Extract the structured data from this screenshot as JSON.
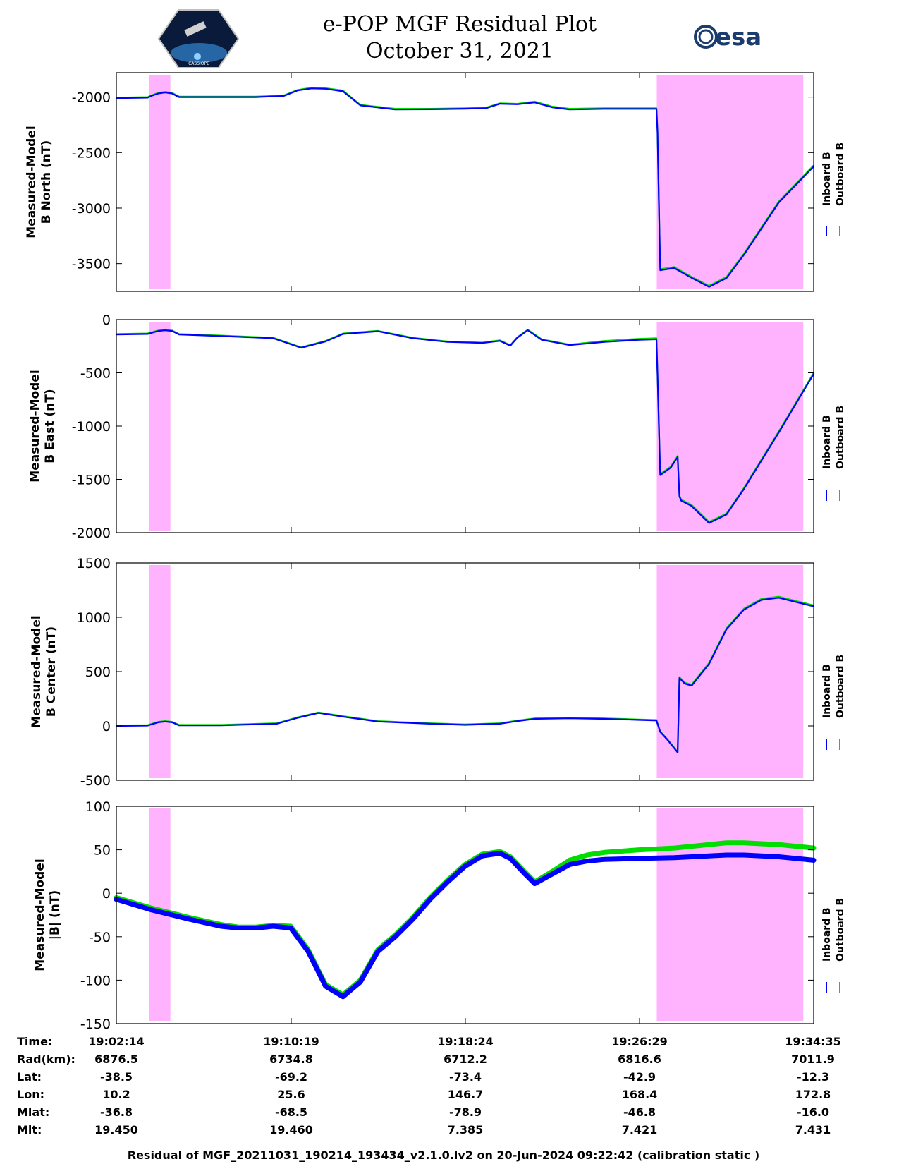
{
  "header": {
    "title_line1": "e-POP MGF Residual Plot",
    "title_line2": "October 31, 2021",
    "left_logo_text": "CASSIOPE",
    "right_logo_text": "esa"
  },
  "colors": {
    "inboard": "#0000ff",
    "outboard": "#00dd00",
    "highlight": "#ffb3ff"
  },
  "legend": {
    "inboard_label": "Inboard B",
    "outboard_label": "Outboard B"
  },
  "chart_data": [
    {
      "type": "line",
      "panel": "north",
      "ylabel_line1": "Measured-Model",
      "ylabel_line2": "B North (nT)",
      "ylim": [
        -3750,
        -1780
      ],
      "yticks": [
        -2000,
        -2500,
        -3000,
        -3500
      ],
      "ytick_labels": [
        "-2000",
        "-2500",
        "-3000",
        "-3500"
      ],
      "highlight_spans": [
        [
          0.95,
          1.55
        ],
        [
          15.5,
          19.7
        ]
      ],
      "series": [
        {
          "name": "Outboard B",
          "x": [
            0,
            0.9,
            1.0,
            1.2,
            1.4,
            1.6,
            1.8,
            2.5,
            4.0,
            4.8,
            5.2,
            5.6,
            6.0,
            6.5,
            7.0,
            8.0,
            9.0,
            10.0,
            10.6,
            11.0,
            11.5,
            12.0,
            12.5,
            13.0,
            14.0,
            15.0,
            15.49,
            15.52,
            15.6,
            16.0,
            16.5,
            17.0,
            17.5,
            18.0,
            19.0,
            20.0
          ],
          "y": [
            -2005,
            -2000,
            -1985,
            -1962,
            -1952,
            -1962,
            -1995,
            -1995,
            -1995,
            -1985,
            -1935,
            -1915,
            -1920,
            -1940,
            -2070,
            -2105,
            -2105,
            -2100,
            -2095,
            -2055,
            -2060,
            -2040,
            -2085,
            -2105,
            -2100,
            -2100,
            -2100,
            -2300,
            -3550,
            -3530,
            -3620,
            -3700,
            -3620,
            -3410,
            -2940,
            -2615
          ]
        },
        {
          "name": "Inboard B",
          "x": [
            0,
            0.9,
            1.0,
            1.2,
            1.4,
            1.6,
            1.8,
            2.5,
            4.0,
            4.8,
            5.2,
            5.6,
            6.0,
            6.5,
            7.0,
            8.0,
            9.0,
            10.0,
            10.6,
            11.0,
            11.5,
            12.0,
            12.5,
            13.0,
            14.0,
            15.0,
            15.49,
            15.52,
            15.6,
            16.0,
            16.5,
            17.0,
            17.5,
            18.0,
            19.0,
            20.0
          ],
          "y": [
            -2010,
            -2005,
            -1990,
            -1968,
            -1958,
            -1968,
            -2000,
            -2000,
            -2000,
            -1990,
            -1940,
            -1922,
            -1925,
            -1948,
            -2075,
            -2112,
            -2110,
            -2105,
            -2100,
            -2060,
            -2065,
            -2048,
            -2092,
            -2112,
            -2106,
            -2106,
            -2106,
            -2310,
            -3560,
            -3540,
            -3628,
            -3710,
            -3630,
            -3420,
            -2950,
            -2625
          ]
        }
      ]
    },
    {
      "type": "line",
      "panel": "east",
      "ylabel_line1": "Measured-Model",
      "ylabel_line2": "B East (nT)",
      "ylim": [
        -2000,
        0
      ],
      "yticks": [
        0,
        -500,
        -1000,
        -1500,
        -2000
      ],
      "ytick_labels": [
        "0",
        "-500",
        "-1000",
        "-1500",
        "-2000"
      ],
      "highlight_spans": [
        [
          0.95,
          1.55
        ],
        [
          15.5,
          19.7
        ]
      ],
      "series": [
        {
          "name": "Outboard B",
          "x": [
            0,
            0.9,
            1.0,
            1.2,
            1.4,
            1.6,
            1.8,
            3.0,
            4.5,
            5.3,
            6.0,
            6.5,
            7.5,
            8.5,
            9.5,
            10.5,
            11.0,
            11.3,
            11.5,
            11.8,
            12.2,
            13.0,
            14.0,
            15.0,
            15.49,
            15.52,
            15.6,
            15.9,
            16.1,
            16.15,
            16.2,
            16.5,
            17.0,
            17.5,
            18.0,
            19.0,
            20.0
          ],
          "y": [
            -135,
            -130,
            -120,
            -102,
            -95,
            -102,
            -135,
            -150,
            -170,
            -260,
            -200,
            -130,
            -105,
            -170,
            -205,
            -215,
            -195,
            -240,
            -165,
            -95,
            -185,
            -235,
            -200,
            -180,
            -175,
            -500,
            -1450,
            -1380,
            -1280,
            -1650,
            -1690,
            -1740,
            -1900,
            -1820,
            -1580,
            -1050,
            -500
          ]
        },
        {
          "name": "Inboard B",
          "x": [
            0,
            0.9,
            1.0,
            1.2,
            1.4,
            1.6,
            1.8,
            3.0,
            4.5,
            5.3,
            6.0,
            6.5,
            7.5,
            8.5,
            9.5,
            10.5,
            11.0,
            11.3,
            11.5,
            11.8,
            12.2,
            13.0,
            14.0,
            15.0,
            15.49,
            15.52,
            15.6,
            15.9,
            16.1,
            16.15,
            16.2,
            16.5,
            17.0,
            17.5,
            18.0,
            19.0,
            20.0
          ],
          "y": [
            -140,
            -135,
            -125,
            -107,
            -100,
            -107,
            -140,
            -155,
            -175,
            -265,
            -205,
            -135,
            -110,
            -175,
            -210,
            -220,
            -200,
            -245,
            -170,
            -100,
            -190,
            -240,
            -210,
            -190,
            -185,
            -510,
            -1460,
            -1390,
            -1290,
            -1660,
            -1700,
            -1750,
            -1910,
            -1830,
            -1590,
            -1060,
            -510
          ]
        }
      ]
    },
    {
      "type": "line",
      "panel": "center",
      "ylabel_line1": "Measured-Model",
      "ylabel_line2": "B Center (nT)",
      "ylim": [
        -500,
        1500
      ],
      "yticks": [
        1500,
        1000,
        500,
        0,
        -500
      ],
      "ytick_labels": [
        "1500",
        "1000",
        "500",
        "0",
        "-500"
      ],
      "highlight_spans": [
        [
          0.95,
          1.55
        ],
        [
          15.5,
          19.7
        ]
      ],
      "series": [
        {
          "name": "Outboard B",
          "x": [
            0,
            0.9,
            1.0,
            1.2,
            1.4,
            1.6,
            1.8,
            3.0,
            4.6,
            5.2,
            5.8,
            6.5,
            7.5,
            9.0,
            10.0,
            11.0,
            11.5,
            12.0,
            13.0,
            14.0,
            15.0,
            15.49,
            15.6,
            15.8,
            16.0,
            16.1,
            16.15,
            16.3,
            16.5,
            17.0,
            17.5,
            18.0,
            18.5,
            19.0,
            19.5,
            20.0
          ],
          "y": [
            5,
            8,
            18,
            38,
            45,
            38,
            10,
            10,
            25,
            80,
            125,
            90,
            45,
            25,
            15,
            25,
            50,
            70,
            75,
            70,
            60,
            55,
            -50,
            -120,
            -200,
            -240,
            450,
            400,
            380,
            580,
            900,
            1080,
            1170,
            1190,
            1150,
            1110
          ]
        },
        {
          "name": "Inboard B",
          "x": [
            0,
            0.9,
            1.0,
            1.2,
            1.4,
            1.6,
            1.8,
            3.0,
            4.6,
            5.2,
            5.8,
            6.5,
            7.5,
            9.0,
            10.0,
            11.0,
            11.5,
            12.0,
            13.0,
            14.0,
            15.0,
            15.49,
            15.6,
            15.8,
            16.0,
            16.1,
            16.15,
            16.3,
            16.5,
            17.0,
            17.5,
            18.0,
            18.5,
            19.0,
            19.5,
            20.0
          ],
          "y": [
            0,
            3,
            13,
            33,
            40,
            33,
            5,
            5,
            20,
            75,
            120,
            85,
            40,
            20,
            10,
            20,
            45,
            65,
            70,
            65,
            55,
            50,
            -55,
            -125,
            -205,
            -245,
            440,
            390,
            370,
            570,
            890,
            1070,
            1160,
            1180,
            1140,
            1100
          ]
        }
      ]
    },
    {
      "type": "line",
      "panel": "magnitude",
      "ylabel_line1": "Measured-Model",
      "ylabel_line2": "|B| (nT)",
      "ylim": [
        -150,
        100
      ],
      "yticks": [
        100,
        50,
        0,
        -50,
        -100,
        -150
      ],
      "ytick_labels": [
        "100",
        "50",
        "0",
        "-50",
        "-100",
        "-150"
      ],
      "highlight_spans": [
        [
          0.95,
          1.55
        ],
        [
          15.5,
          19.7
        ]
      ],
      "series": [
        {
          "name": "Outboard B",
          "x": [
            0,
            1.0,
            2.0,
            3.0,
            3.5,
            4.0,
            4.5,
            5.0,
            5.5,
            6.0,
            6.5,
            7.0,
            7.5,
            8.0,
            8.5,
            9.0,
            9.5,
            10.0,
            10.5,
            11.0,
            11.3,
            11.7,
            12.0,
            12.5,
            13.0,
            13.5,
            14.0,
            15.0,
            16.0,
            17.0,
            17.5,
            18.0,
            18.5,
            19.0,
            20.0
          ],
          "y": [
            -5,
            -17,
            -27,
            -36,
            -39,
            -39,
            -37,
            -38,
            -65,
            -105,
            -117,
            -100,
            -65,
            -48,
            -28,
            -5,
            15,
            33,
            45,
            48,
            42,
            25,
            13,
            25,
            38,
            44,
            47,
            50,
            52,
            56,
            58,
            58,
            57,
            56,
            52
          ]
        },
        {
          "name": "Inboard B",
          "x": [
            0,
            1.0,
            2.0,
            3.0,
            3.5,
            4.0,
            4.5,
            5.0,
            5.5,
            6.0,
            6.5,
            7.0,
            7.5,
            8.0,
            8.5,
            9.0,
            9.5,
            10.0,
            10.5,
            11.0,
            11.3,
            11.7,
            12.0,
            12.5,
            13.0,
            13.5,
            14.0,
            15.0,
            16.0,
            17.0,
            17.5,
            18.0,
            18.5,
            19.0,
            20.0
          ],
          "y": [
            -7,
            -19,
            -29,
            -38,
            -40,
            -40,
            -38,
            -40,
            -67,
            -107,
            -119,
            -102,
            -67,
            -50,
            -30,
            -7,
            13,
            31,
            43,
            46,
            40,
            23,
            11,
            22,
            33,
            37,
            39,
            40,
            41,
            43,
            44,
            44,
            43,
            42,
            38
          ]
        }
      ]
    }
  ],
  "table": {
    "row_labels": [
      "Time:",
      "Rad(km):",
      "Lat:",
      "Lon:",
      "Mlat:",
      "Mlt:"
    ],
    "columns": [
      [
        "19:02:14",
        "6876.5",
        "-38.5",
        "10.2",
        "-36.8",
        "19.450"
      ],
      [
        "19:10:19",
        "6734.8",
        "-69.2",
        "25.6",
        "-68.5",
        "19.460"
      ],
      [
        "19:18:24",
        "6712.2",
        "-73.4",
        "146.7",
        "-78.9",
        "7.385"
      ],
      [
        "19:26:29",
        "6816.6",
        "-42.9",
        "168.4",
        "-46.8",
        "7.421"
      ],
      [
        "19:34:35",
        "7011.9",
        "-12.3",
        "172.8",
        "-16.0",
        "7.431"
      ]
    ]
  },
  "footer": "Residual of MGF_20211031_190214_193434_v2.1.0.lv2 on 20-Jun-2024 09:22:42 (calibration static )"
}
